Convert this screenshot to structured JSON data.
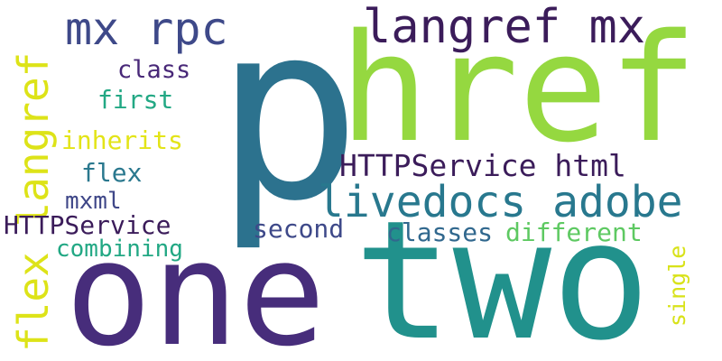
{
  "words": [
    {
      "text": "p",
      "color": "#2c728e"
    },
    {
      "text": "href",
      "color": "#95d840"
    },
    {
      "text": "one",
      "color": "#472d7b"
    },
    {
      "text": "two",
      "color": "#21918c"
    },
    {
      "text": "langref mx",
      "color": "#3b1c5a"
    },
    {
      "text": "mx rpc",
      "color": "#3e4989"
    },
    {
      "text": "flex langref",
      "color": "#dde318"
    },
    {
      "text": "livedocs adobe",
      "color": "#28788e"
    },
    {
      "text": "HTTPService html",
      "color": "#3b1c5a"
    },
    {
      "text": "class",
      "color": "#482878"
    },
    {
      "text": "first",
      "color": "#22a884"
    },
    {
      "text": "inherits",
      "color": "#e3e418"
    },
    {
      "text": "flex",
      "color": "#2a788e"
    },
    {
      "text": "mxml",
      "color": "#3f4788"
    },
    {
      "text": "HTTPService",
      "color": "#3b1c5a"
    },
    {
      "text": "combining",
      "color": "#22a884"
    },
    {
      "text": "second",
      "color": "#3e4989"
    },
    {
      "text": "classes",
      "color": "#31688e"
    },
    {
      "text": "different",
      "color": "#5ec962"
    },
    {
      "text": "single",
      "color": "#d8e219"
    }
  ]
}
